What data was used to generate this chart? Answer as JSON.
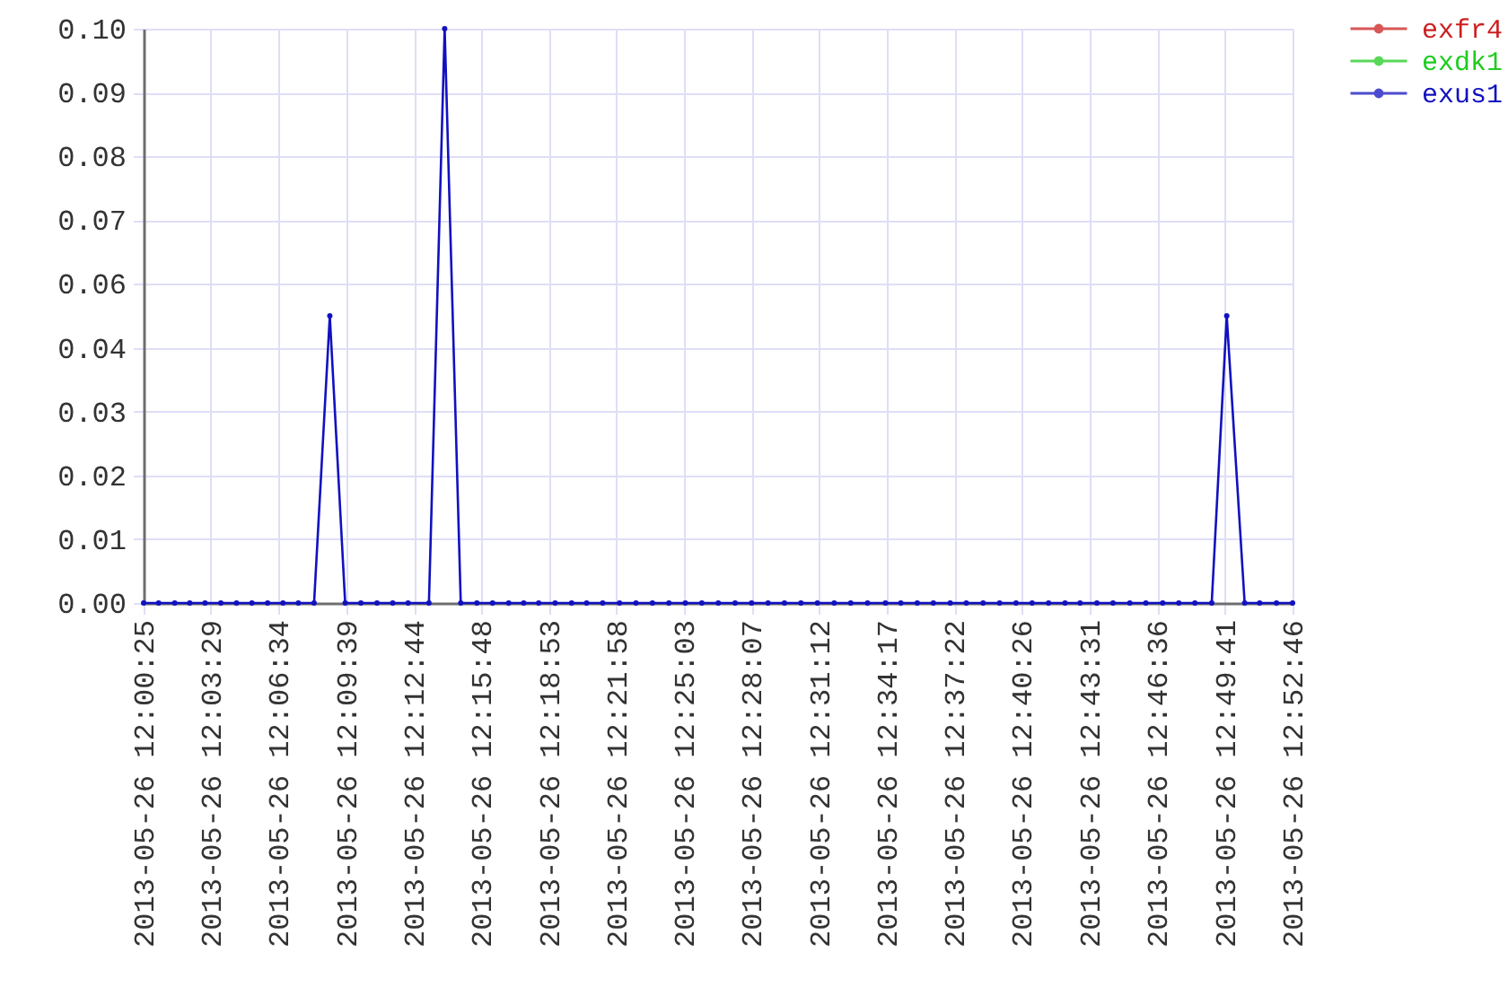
{
  "chart_data": {
    "type": "line",
    "x": [
      "2013-05-26T12:00:25",
      "2013-05-26T12:01:06",
      "2013-05-26T12:01:50",
      "2013-05-26T12:02:31",
      "2013-05-26T12:03:13",
      "2013-05-26T12:03:56",
      "2013-05-26T12:04:39",
      "2013-05-26T12:05:21",
      "2013-05-26T12:06:04",
      "2013-05-26T12:06:46",
      "2013-05-26T12:07:28",
      "2013-05-26T12:08:11",
      "2013-05-26T12:08:54",
      "2013-05-26T12:09:36",
      "2013-05-26T12:10:19",
      "2013-05-26T12:11:03",
      "2013-05-26T12:11:46",
      "2013-05-26T12:12:28",
      "2013-05-26T12:13:25",
      "2013-05-26T12:14:08",
      "2013-05-26T12:14:52",
      "2013-05-26T12:15:36",
      "2013-05-26T12:16:19",
      "2013-05-26T12:17:03",
      "2013-05-26T12:17:44",
      "2013-05-26T12:18:25",
      "2013-05-26T12:19:10",
      "2013-05-26T12:19:55",
      "2013-05-26T12:20:36",
      "2013-05-26T12:21:20",
      "2013-05-26T12:22:06",
      "2013-05-26T12:22:51",
      "2013-05-26T12:23:36",
      "2013-05-26T12:24:21",
      "2013-05-26T12:25:06",
      "2013-05-26T12:25:51",
      "2013-05-26T12:26:36",
      "2013-05-26T12:27:22",
      "2013-05-26T12:28:07",
      "2013-05-26T12:28:52",
      "2013-05-26T12:29:37",
      "2013-05-26T12:30:22",
      "2013-05-26T12:31:07",
      "2013-05-26T12:31:53",
      "2013-05-26T12:32:38",
      "2013-05-26T12:33:24",
      "2013-05-26T12:34:13",
      "2013-05-26T12:34:55",
      "2013-05-26T12:35:40",
      "2013-05-26T12:36:24",
      "2013-05-26T12:37:10",
      "2013-05-26T12:37:54",
      "2013-05-26T12:38:40",
      "2013-05-26T12:39:25",
      "2013-05-26T12:40:10",
      "2013-05-26T12:40:54",
      "2013-05-26T12:41:39",
      "2013-05-26T12:42:24",
      "2013-05-26T12:43:05",
      "2013-05-26T12:43:51",
      "2013-05-26T12:44:35",
      "2013-05-26T12:45:21",
      "2013-05-26T12:46:05",
      "2013-05-26T12:46:51",
      "2013-05-26T12:47:35",
      "2013-05-26T12:48:19",
      "2013-05-26T12:49:05",
      "2013-05-26T12:49:46",
      "2013-05-26T12:50:35",
      "2013-05-26T12:51:16",
      "2013-05-26T12:52:02",
      "2013-05-26T12:52:46"
    ],
    "series": [
      {
        "name": "exfr4",
        "color": "#cc1f1f",
        "values": [
          null,
          null,
          null,
          null,
          null,
          null,
          null,
          null,
          null,
          null,
          null,
          null,
          null,
          null,
          null,
          null,
          null,
          null,
          null,
          null,
          null,
          null,
          null,
          null,
          null,
          null,
          null,
          null,
          null,
          null,
          null,
          null,
          null,
          null,
          null,
          null,
          null,
          null,
          null,
          null,
          null,
          null,
          null,
          null,
          null,
          null,
          null,
          null,
          null,
          null,
          null,
          null,
          null,
          null,
          null,
          null,
          null,
          null,
          null,
          null,
          null,
          null,
          null,
          null,
          null,
          null,
          null,
          null,
          null,
          null,
          null,
          null
        ]
      },
      {
        "name": "exdk1",
        "color": "#1fcc1f",
        "values": [
          null,
          null,
          null,
          null,
          null,
          null,
          null,
          null,
          null,
          null,
          null,
          null,
          null,
          null,
          null,
          null,
          null,
          null,
          null,
          null,
          null,
          null,
          null,
          null,
          null,
          null,
          null,
          null,
          null,
          null,
          null,
          null,
          null,
          null,
          null,
          null,
          null,
          null,
          null,
          null,
          null,
          null,
          null,
          null,
          null,
          null,
          null,
          null,
          null,
          null,
          null,
          null,
          null,
          null,
          null,
          null,
          null,
          null,
          null,
          null,
          null,
          null,
          null,
          null,
          null,
          null,
          null,
          null,
          null,
          null,
          null,
          null
        ]
      },
      {
        "name": "exus1",
        "color": "#1111c0",
        "values": [
          0,
          0,
          0,
          0,
          0,
          0,
          0,
          0,
          0,
          0,
          0,
          0,
          0.05,
          0,
          0,
          0,
          0,
          0,
          0,
          0.1,
          0,
          0,
          0,
          0,
          0,
          0,
          0,
          0,
          0,
          0,
          0,
          0,
          0,
          0,
          0,
          0,
          0,
          0,
          0,
          0,
          0,
          0,
          0,
          0,
          0,
          0,
          0,
          0,
          0,
          0,
          0,
          0,
          0,
          0,
          0,
          0,
          0,
          0,
          0,
          0,
          0,
          0,
          0,
          0,
          0,
          0,
          0,
          0.05,
          0,
          0,
          0,
          0
        ]
      }
    ],
    "xlim": [
      "2013-05-26T12:00:25",
      "2013-05-26T12:52:46"
    ],
    "xticks": [
      {
        "value": "2013-05-26T12:00:25",
        "label": "2013-05-26 12:00:25"
      },
      {
        "value": "2013-05-26T12:03:29",
        "label": "2013-05-26 12:03:29"
      },
      {
        "value": "2013-05-26T12:06:34",
        "label": "2013-05-26 12:06:34"
      },
      {
        "value": "2013-05-26T12:09:39",
        "label": "2013-05-26 12:09:39"
      },
      {
        "value": "2013-05-26T12:12:44",
        "label": "2013-05-26 12:12:44"
      },
      {
        "value": "2013-05-26T12:15:48",
        "label": "2013-05-26 12:15:48"
      },
      {
        "value": "2013-05-26T12:18:53",
        "label": "2013-05-26 12:18:53"
      },
      {
        "value": "2013-05-26T12:21:58",
        "label": "2013-05-26 12:21:58"
      },
      {
        "value": "2013-05-26T12:25:03",
        "label": "2013-05-26 12:25:03"
      },
      {
        "value": "2013-05-26T12:28:07",
        "label": "2013-05-26 12:28:07"
      },
      {
        "value": "2013-05-26T12:31:12",
        "label": "2013-05-26 12:31:12"
      },
      {
        "value": "2013-05-26T12:34:17",
        "label": "2013-05-26 12:34:17"
      },
      {
        "value": "2013-05-26T12:37:22",
        "label": "2013-05-26 12:37:22"
      },
      {
        "value": "2013-05-26T12:40:26",
        "label": "2013-05-26 12:40:26"
      },
      {
        "value": "2013-05-26T12:43:31",
        "label": "2013-05-26 12:43:31"
      },
      {
        "value": "2013-05-26T12:46:36",
        "label": "2013-05-26 12:46:36"
      },
      {
        "value": "2013-05-26T12:49:41",
        "label": "2013-05-26 12:49:41"
      },
      {
        "value": "2013-05-26T12:52:46",
        "label": "2013-05-26 12:52:46"
      }
    ],
    "ylim": [
      0,
      0.1
    ],
    "yticks": [
      {
        "value": 0,
        "label": "0.00"
      },
      {
        "value": 0.0111,
        "label": "0.01"
      },
      {
        "value": 0.0222,
        "label": "0.02"
      },
      {
        "value": 0.0333,
        "label": "0.03"
      },
      {
        "value": 0.0444,
        "label": "0.04"
      },
      {
        "value": 0.0556,
        "label": "0.06"
      },
      {
        "value": 0.0667,
        "label": "0.07"
      },
      {
        "value": 0.0778,
        "label": "0.08"
      },
      {
        "value": 0.0889,
        "label": "0.09"
      },
      {
        "value": 0.1,
        "label": "0.10"
      }
    ],
    "grid": true,
    "legend": "top right",
    "marker": "circle",
    "line_style": "solid"
  }
}
